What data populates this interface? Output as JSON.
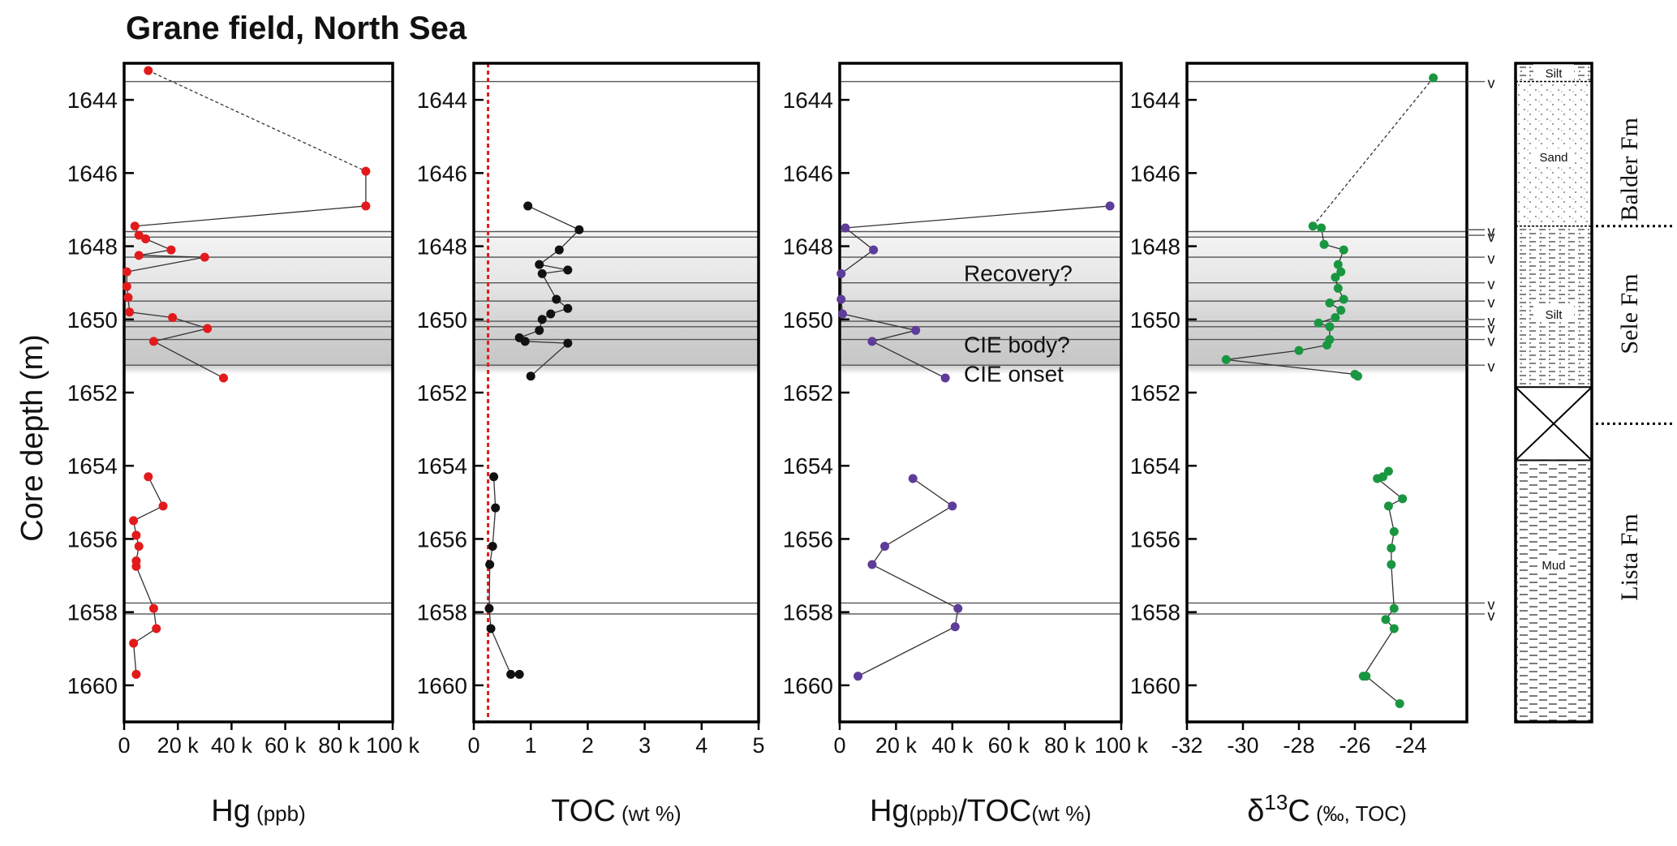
{
  "title": "Grane field, North Sea",
  "ylabel": "Core depth (m)",
  "ylim": [
    1643,
    1661
  ],
  "y_ticks": [
    1644,
    1646,
    1648,
    1650,
    1652,
    1654,
    1656,
    1658,
    1660
  ],
  "horizontal_lines": [
    1643.5,
    1647.6,
    1647.75,
    1648.3,
    1649.0,
    1649.5,
    1650.05,
    1650.2,
    1650.55,
    1651.25,
    1657.75,
    1658.05
  ],
  "shaded_band": [
    1647.6,
    1651.5
  ],
  "annotations": [
    "Recovery?",
    "CIE body?",
    "CIE onset"
  ],
  "v_markers": [
    1643.5,
    1647.55,
    1647.7,
    1648.3,
    1649.0,
    1649.5,
    1650.0,
    1650.2,
    1650.55,
    1651.25,
    1657.75,
    1658.05
  ],
  "colors": {
    "hg": "#e31a1c",
    "toc": "#111111",
    "ratio": "#5e3c99",
    "d13c": "#1a9641",
    "cutoff": "#e31a1c",
    "line": "#444444"
  },
  "chart_data": [
    {
      "type": "scatter",
      "xlabel": "Hg",
      "xunit": "(ppb)",
      "xlim": [
        0,
        100000
      ],
      "x_ticks": [
        0,
        20000,
        40000,
        60000,
        80000,
        100000
      ],
      "x_tick_labels": [
        "0",
        "20 k",
        "40 k",
        "60 k",
        "80 k",
        "100 k"
      ],
      "series": [
        {
          "points": [
            [
              9000,
              1643.2
            ],
            [
              90000,
              1645.95
            ],
            [
              90000,
              1646.9
            ],
            [
              4000,
              1647.45
            ],
            [
              5500,
              1647.7
            ],
            [
              8000,
              1647.8
            ],
            [
              17500,
              1648.1
            ],
            [
              5500,
              1648.25
            ],
            [
              30000,
              1648.3
            ],
            [
              1000,
              1648.7
            ],
            [
              1000,
              1649.1
            ],
            [
              1500,
              1649.4
            ],
            [
              2000,
              1649.8
            ],
            [
              18000,
              1649.95
            ],
            [
              31000,
              1650.25
            ],
            [
              11000,
              1650.6
            ],
            [
              37000,
              1651.6
            ],
            [
              9000,
              1654.3
            ],
            [
              14500,
              1655.1
            ],
            [
              3500,
              1655.5
            ],
            [
              4500,
              1655.9
            ],
            [
              5500,
              1656.2
            ],
            [
              4500,
              1656.6
            ],
            [
              4500,
              1656.75
            ],
            [
              11000,
              1657.9
            ],
            [
              12000,
              1658.45
            ],
            [
              3500,
              1658.85
            ],
            [
              4500,
              1659.7
            ]
          ],
          "dashed_segments": [
            [
              0,
              1
            ]
          ],
          "gap_after": 16
        }
      ]
    },
    {
      "type": "scatter",
      "xlabel": "TOC",
      "xunit": "(wt %)",
      "xlim": [
        0,
        5
      ],
      "x_ticks": [
        0,
        1,
        2,
        3,
        4,
        5
      ],
      "x_tick_labels": [
        "0",
        "1",
        "2",
        "3",
        "4",
        "5"
      ],
      "cutoff": 0.25,
      "series": [
        {
          "points": [
            [
              0.95,
              1646.9
            ],
            [
              1.85,
              1647.55
            ],
            [
              1.5,
              1648.1
            ],
            [
              1.15,
              1648.5
            ],
            [
              1.65,
              1648.65
            ],
            [
              1.2,
              1648.75
            ],
            [
              1.45,
              1649.45
            ],
            [
              1.65,
              1649.7
            ],
            [
              1.35,
              1649.85
            ],
            [
              1.2,
              1650.0
            ],
            [
              1.15,
              1650.3
            ],
            [
              0.8,
              1650.5
            ],
            [
              0.9,
              1650.6
            ],
            [
              1.65,
              1650.65
            ],
            [
              1.0,
              1651.55
            ],
            [
              0.35,
              1654.3
            ],
            [
              0.38,
              1655.15
            ],
            [
              0.33,
              1656.2
            ],
            [
              0.28,
              1656.7
            ],
            [
              0.27,
              1657.9
            ],
            [
              0.3,
              1658.45
            ],
            [
              0.65,
              1659.7
            ],
            [
              0.8,
              1659.7
            ]
          ],
          "gap_after": 14
        }
      ]
    },
    {
      "type": "scatter",
      "xlabel": "Hg",
      "xunit": "(ppb)",
      "xlabel2": "/TOC",
      "xunit2": "(wt %)",
      "xlim": [
        0,
        100000
      ],
      "x_ticks": [
        0,
        20000,
        40000,
        60000,
        80000,
        100000
      ],
      "x_tick_labels": [
        "0",
        "20 k",
        "40 k",
        "60 k",
        "80 k",
        "100 k"
      ],
      "series": [
        {
          "points": [
            [
              96000,
              1646.9
            ],
            [
              2000,
              1647.5
            ],
            [
              12000,
              1648.1
            ],
            [
              500,
              1648.75
            ],
            [
              500,
              1649.45
            ],
            [
              1000,
              1649.85
            ],
            [
              27000,
              1650.3
            ],
            [
              11500,
              1650.6
            ],
            [
              37500,
              1651.6
            ],
            [
              26000,
              1654.35
            ],
            [
              40000,
              1655.1
            ],
            [
              16000,
              1656.2
            ],
            [
              11500,
              1656.7
            ],
            [
              42000,
              1657.9
            ],
            [
              41000,
              1658.4
            ],
            [
              6500,
              1659.75
            ]
          ],
          "gap_after": 8
        }
      ]
    },
    {
      "type": "scatter",
      "xlabel": "δ13C",
      "xunit": "(‰, TOC)",
      "xlim": [
        -32,
        -22
      ],
      "x_ticks": [
        -32,
        -30,
        -28,
        -26,
        -24
      ],
      "x_tick_labels": [
        "-32",
        "-30",
        "-28",
        "-26",
        "-24"
      ],
      "series": [
        {
          "points": [
            [
              -23.2,
              1643.4
            ],
            [
              -27.5,
              1647.45
            ],
            [
              -27.2,
              1647.5
            ],
            [
              -27.1,
              1647.95
            ],
            [
              -26.4,
              1648.1
            ],
            [
              -26.6,
              1648.5
            ],
            [
              -26.5,
              1648.7
            ],
            [
              -26.7,
              1648.85
            ],
            [
              -26.6,
              1649.15
            ],
            [
              -26.4,
              1649.45
            ],
            [
              -26.9,
              1649.55
            ],
            [
              -26.5,
              1649.75
            ],
            [
              -26.7,
              1649.95
            ],
            [
              -27.3,
              1650.1
            ],
            [
              -26.9,
              1650.2
            ],
            [
              -26.9,
              1650.55
            ],
            [
              -27.0,
              1650.7
            ],
            [
              -28.0,
              1650.85
            ],
            [
              -30.6,
              1651.1
            ],
            [
              -26.0,
              1651.5
            ],
            [
              -25.9,
              1651.55
            ],
            [
              -24.8,
              1654.15
            ],
            [
              -25.0,
              1654.3
            ],
            [
              -25.2,
              1654.35
            ],
            [
              -24.3,
              1654.9
            ],
            [
              -24.8,
              1655.1
            ],
            [
              -24.6,
              1655.8
            ],
            [
              -24.7,
              1656.25
            ],
            [
              -24.7,
              1656.7
            ],
            [
              -24.6,
              1657.9
            ],
            [
              -24.9,
              1658.2
            ],
            [
              -24.6,
              1658.45
            ],
            [
              -25.7,
              1659.75
            ],
            [
              -25.6,
              1659.75
            ],
            [
              -24.4,
              1660.5
            ]
          ],
          "dashed_segments": [
            [
              0,
              1
            ]
          ],
          "gap_after": 20
        }
      ]
    }
  ],
  "lithology": {
    "labels": [
      "Silt",
      "Sand",
      "Silt",
      "Mud"
    ],
    "formations": [
      "Balder Fm",
      "Sele Fm",
      "Lista Fm"
    ]
  }
}
